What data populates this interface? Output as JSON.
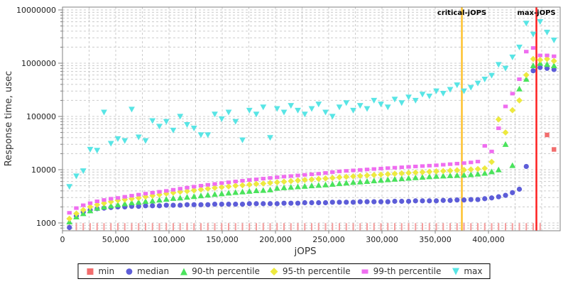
{
  "chart_data": {
    "type": "scatter",
    "title": "",
    "xlabel": "jOPS",
    "ylabel": "Response time, usec",
    "yscale": "log",
    "xlim": [
      0,
      467000
    ],
    "ylim": [
      700,
      11500000
    ],
    "grid": true,
    "legend_position": "bottom",
    "x_ticks": [
      {
        "value": 0,
        "label": "0"
      },
      {
        "value": 50000,
        "label": "50,000"
      },
      {
        "value": 100000,
        "label": "100,000"
      },
      {
        "value": 150000,
        "label": "150,000"
      },
      {
        "value": 200000,
        "label": "200,000"
      },
      {
        "value": 250000,
        "label": "250,000"
      },
      {
        "value": 300000,
        "label": "300,000"
      },
      {
        "value": 350000,
        "label": "350,000"
      },
      {
        "value": 400000,
        "label": "400,000"
      }
    ],
    "y_ticks": [
      {
        "value": 1000,
        "label": "1000"
      },
      {
        "value": 10000,
        "label": "10000"
      },
      {
        "value": 100000,
        "label": "100000"
      },
      {
        "value": 1000000,
        "label": "1000000"
      },
      {
        "value": 10000000,
        "label": "10000000"
      }
    ],
    "x": [
      6500,
      13000,
      19500,
      26000,
      32500,
      39000,
      45500,
      52000,
      58500,
      65000,
      71500,
      78000,
      84500,
      91000,
      97500,
      104000,
      110500,
      117000,
      123500,
      130000,
      136500,
      143000,
      149500,
      156000,
      162500,
      169000,
      175500,
      182000,
      188500,
      195000,
      201500,
      208000,
      214500,
      221000,
      227500,
      234000,
      240500,
      247000,
      253500,
      260000,
      266500,
      273000,
      279500,
      286000,
      292500,
      299000,
      305500,
      312000,
      318500,
      325000,
      331500,
      338000,
      344500,
      351000,
      357500,
      364000,
      370500,
      377000,
      383500,
      390000,
      396500,
      403000,
      409500,
      416000,
      422500,
      429000,
      435500,
      442000,
      448500,
      455000,
      461500
    ],
    "series": [
      {
        "name": "min",
        "marker": "square",
        "color": "#f26d6d",
        "tick_color": "#f59d9d",
        "values": [
          850,
          850,
          850,
          850,
          850,
          850,
          850,
          850,
          850,
          850,
          850,
          850,
          850,
          850,
          850,
          850,
          850,
          850,
          850,
          850,
          850,
          850,
          850,
          850,
          850,
          850,
          850,
          850,
          850,
          850,
          850,
          850,
          850,
          850,
          850,
          850,
          850,
          850,
          850,
          850,
          850,
          850,
          850,
          850,
          850,
          850,
          850,
          850,
          850,
          850,
          850,
          850,
          850,
          850,
          850,
          850,
          850,
          850,
          850,
          850,
          850,
          850,
          850,
          850,
          850,
          850,
          850,
          850,
          850,
          45000,
          24000
        ]
      },
      {
        "name": "median",
        "marker": "circle",
        "color": "#5d5dd8",
        "values": [
          820,
          1350,
          1600,
          1750,
          1850,
          1900,
          1950,
          2000,
          2000,
          2050,
          2050,
          2100,
          2100,
          2100,
          2150,
          2150,
          2150,
          2200,
          2200,
          2200,
          2200,
          2250,
          2250,
          2250,
          2250,
          2250,
          2300,
          2300,
          2300,
          2300,
          2300,
          2350,
          2350,
          2350,
          2400,
          2400,
          2400,
          2400,
          2450,
          2450,
          2450,
          2450,
          2500,
          2500,
          2500,
          2500,
          2500,
          2550,
          2550,
          2550,
          2600,
          2600,
          2600,
          2600,
          2650,
          2650,
          2700,
          2700,
          2750,
          2750,
          2850,
          2950,
          3100,
          3300,
          3700,
          4300,
          11500,
          720000,
          830000,
          800000,
          760000
        ]
      },
      {
        "name": "90-th percentile",
        "marker": "triangle-up",
        "color": "#4ae35c",
        "values": [
          1050,
          1300,
          1500,
          1700,
          1900,
          2000,
          2100,
          2200,
          2300,
          2400,
          2450,
          2550,
          2600,
          2700,
          2800,
          2900,
          2950,
          3050,
          3150,
          3250,
          3350,
          3450,
          3550,
          3650,
          3750,
          3850,
          3950,
          4050,
          4100,
          4200,
          4500,
          4600,
          4700,
          4800,
          4900,
          5000,
          5100,
          5200,
          5350,
          5500,
          5650,
          5800,
          5900,
          6050,
          6200,
          6350,
          6500,
          6650,
          6800,
          6950,
          7100,
          7250,
          7400,
          7550,
          7650,
          7750,
          7850,
          7950,
          8100,
          8300,
          8600,
          9200,
          10000,
          30000,
          12000,
          330000,
          500000,
          900000,
          1000000,
          950000,
          900000
        ]
      },
      {
        "name": "95-th percentile",
        "marker": "diamond",
        "color": "#ede93f",
        "values": [
          1200,
          1500,
          1750,
          2000,
          2200,
          2350,
          2500,
          2650,
          2750,
          2850,
          2950,
          3100,
          3250,
          3400,
          3550,
          3700,
          3850,
          3950,
          4100,
          4250,
          4400,
          4550,
          4700,
          4850,
          5000,
          5100,
          5250,
          5400,
          5500,
          5650,
          5800,
          5950,
          6100,
          6250,
          6400,
          6550,
          6700,
          6850,
          7000,
          7200,
          7350,
          7500,
          7650,
          7800,
          7950,
          8100,
          8250,
          8400,
          8550,
          8700,
          8850,
          9000,
          9150,
          9300,
          9450,
          9600,
          9750,
          9900,
          10100,
          10300,
          10600,
          14000,
          88000,
          50000,
          131000,
          200000,
          600000,
          1200000,
          1150000,
          1200000,
          1100000
        ]
      },
      {
        "name": "99-th percentile",
        "marker": "rect",
        "color": "#ef6df0",
        "values": [
          1550,
          1900,
          2150,
          2350,
          2550,
          2700,
          2850,
          2950,
          3100,
          3250,
          3400,
          3550,
          3700,
          3850,
          4000,
          4200,
          4400,
          4600,
          4800,
          5000,
          5200,
          5400,
          5600,
          5800,
          6000,
          6200,
          6400,
          6600,
          6800,
          7000,
          7200,
          7400,
          7600,
          7800,
          8000,
          8200,
          8400,
          8700,
          9000,
          9300,
          9500,
          9700,
          9900,
          10100,
          10300,
          10500,
          10700,
          10900,
          11100,
          11300,
          11500,
          11700,
          11900,
          12100,
          12400,
          12700,
          13000,
          13300,
          13700,
          14200,
          28000,
          22000,
          60000,
          154000,
          268000,
          500000,
          1650000,
          1930000,
          1400000,
          1400000,
          1350000
        ]
      },
      {
        "name": "max",
        "marker": "triangle-down",
        "color": "#58e5e5",
        "values": [
          4800,
          7600,
          9500,
          24000,
          23000,
          120000,
          31000,
          38000,
          35000,
          136000,
          41000,
          35000,
          83000,
          65000,
          80000,
          55000,
          100000,
          70000,
          60000,
          45000,
          45000,
          110000,
          90000,
          120000,
          80000,
          36000,
          130000,
          110000,
          150000,
          40000,
          140000,
          120000,
          160000,
          130000,
          110000,
          140000,
          170000,
          120000,
          100000,
          150000,
          180000,
          130000,
          160000,
          140000,
          200000,
          170000,
          150000,
          210000,
          180000,
          230000,
          200000,
          260000,
          240000,
          300000,
          270000,
          320000,
          390000,
          300000,
          350000,
          420000,
          500000,
          590000,
          940000,
          800000,
          1300000,
          2000000,
          5600000,
          3500000,
          6000000,
          3800000,
          2700000
        ]
      }
    ],
    "vlines": [
      {
        "label": "critical-jOPS",
        "x": 375000,
        "color": "#fdc22f"
      },
      {
        "label": "max-jOPS",
        "x": 445000,
        "color": "#fe2020"
      }
    ]
  },
  "style_colors": {
    "grid": "#cccccc",
    "border": "#808080",
    "tick_text": "#222222",
    "axis_title": "#333333"
  }
}
